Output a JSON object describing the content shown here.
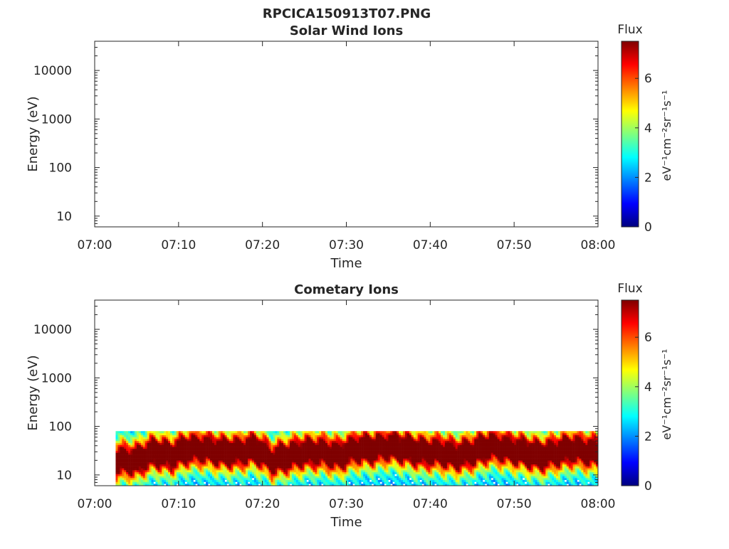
{
  "figure": {
    "title": "RPCICA150913T07.PNG"
  },
  "colorbar": {
    "label": "Flux",
    "units": "eV⁻¹cm⁻²sr⁻¹s⁻¹",
    "range": [
      0,
      7.5
    ],
    "ticks": [
      "0",
      "2",
      "4",
      "6"
    ],
    "colormap": [
      "#00007f",
      "#0000ff",
      "#007fff",
      "#00ffff",
      "#7fff7f",
      "#ffff00",
      "#ff7f00",
      "#ff0000",
      "#7f0000"
    ]
  },
  "chart_data": [
    {
      "type": "heatmap",
      "title": "Solar Wind Ions",
      "xlabel": "Time",
      "ylabel": "Energy (eV)",
      "x_ticks": [
        "07:00",
        "07:10",
        "07:20",
        "07:30",
        "07:40",
        "07:50",
        "08:00"
      ],
      "y_ticks": [
        "10",
        "100",
        "1000",
        "10000"
      ],
      "y_scale": "log",
      "xlim": [
        "07:00",
        "08:00"
      ],
      "ylim": [
        6,
        40000
      ],
      "grid": false,
      "data": []
    },
    {
      "type": "heatmap",
      "title": "Cometary Ions",
      "xlabel": "Time",
      "ylabel": "Energy (eV)",
      "x_ticks": [
        "07:00",
        "07:10",
        "07:20",
        "07:30",
        "07:40",
        "07:50",
        "08:00"
      ],
      "y_ticks": [
        "10",
        "100",
        "1000",
        "10000"
      ],
      "y_scale": "log",
      "xlim": [
        "07:00",
        "08:00"
      ],
      "ylim": [
        6,
        40000
      ],
      "grid": false,
      "data_start": "07:02:30",
      "energy_max": 80,
      "peak_energy": [
        [
          "07:03",
          20
        ],
        [
          "07:05",
          20
        ],
        [
          "07:07",
          30
        ],
        [
          "07:09",
          25
        ],
        [
          "07:11",
          35
        ],
        [
          "07:13",
          35
        ],
        [
          "07:15",
          30
        ],
        [
          "07:17",
          30
        ],
        [
          "07:19",
          35
        ],
        [
          "07:21",
          20
        ],
        [
          "07:23",
          25
        ],
        [
          "07:25",
          30
        ],
        [
          "07:27",
          30
        ],
        [
          "07:29",
          25
        ],
        [
          "07:31",
          35
        ],
        [
          "07:33",
          35
        ],
        [
          "07:35",
          40
        ],
        [
          "07:37",
          35
        ],
        [
          "07:39",
          30
        ],
        [
          "07:41",
          30
        ],
        [
          "07:43",
          25
        ],
        [
          "07:45",
          30
        ],
        [
          "07:47",
          40
        ],
        [
          "07:49",
          35
        ],
        [
          "07:51",
          30
        ],
        [
          "07:53",
          25
        ],
        [
          "07:55",
          30
        ],
        [
          "07:57",
          35
        ],
        [
          "07:59",
          30
        ]
      ],
      "peak_flux": 7
    }
  ]
}
